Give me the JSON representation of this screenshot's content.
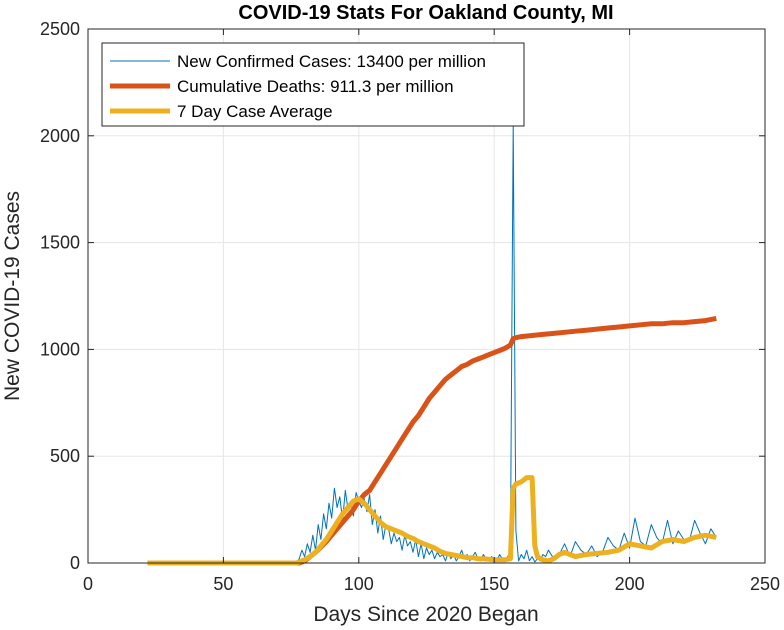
{
  "chart_data": {
    "type": "line",
    "title": "COVID-19 Stats For Oakland County, MI",
    "xlabel": "Days Since 2020 Began",
    "ylabel": "New COVID-19 Cases",
    "xlim": [
      0,
      250
    ],
    "ylim": [
      0,
      2500
    ],
    "xticks": [
      0,
      50,
      100,
      150,
      200,
      250
    ],
    "yticks": [
      0,
      500,
      1000,
      1500,
      2000,
      2500
    ],
    "grid": true,
    "legend_position": "top-left",
    "series": [
      {
        "name": "New Confirmed Cases: 13400 per million",
        "color": "#0072BD",
        "style": "thin",
        "x": [
          22,
          30,
          40,
          50,
          60,
          70,
          77,
          78,
          79,
          80,
          81,
          82,
          83,
          84,
          85,
          86,
          87,
          88,
          89,
          90,
          91,
          92,
          93,
          94,
          95,
          96,
          97,
          98,
          99,
          100,
          101,
          102,
          103,
          104,
          105,
          106,
          107,
          108,
          109,
          110,
          111,
          112,
          113,
          114,
          115,
          116,
          117,
          118,
          119,
          120,
          121,
          122,
          123,
          124,
          125,
          126,
          127,
          128,
          129,
          130,
          131,
          132,
          133,
          134,
          135,
          136,
          137,
          138,
          139,
          140,
          141,
          142,
          143,
          144,
          145,
          146,
          147,
          148,
          149,
          150,
          151,
          152,
          153,
          154,
          155,
          156,
          157,
          158,
          159,
          160,
          161,
          162,
          163,
          164,
          165,
          166,
          167,
          168,
          169,
          170,
          172,
          174,
          176,
          178,
          180,
          182,
          184,
          186,
          188,
          190,
          192,
          194,
          196,
          198,
          200,
          202,
          204,
          206,
          208,
          210,
          212,
          214,
          216,
          218,
          220,
          222,
          224,
          226,
          228,
          230,
          232
        ],
        "y": [
          0,
          0,
          0,
          0,
          0,
          0,
          0,
          20,
          60,
          30,
          90,
          50,
          130,
          60,
          180,
          110,
          230,
          160,
          280,
          210,
          350,
          260,
          310,
          200,
          340,
          250,
          290,
          220,
          330,
          290,
          260,
          300,
          240,
          320,
          180,
          250,
          140,
          220,
          110,
          180,
          160,
          90,
          140,
          100,
          120,
          60,
          130,
          80,
          100,
          50,
          110,
          30,
          90,
          20,
          70,
          40,
          60,
          20,
          50,
          30,
          40,
          10,
          50,
          20,
          40,
          10,
          30,
          60,
          20,
          40,
          10,
          30,
          50,
          20,
          10,
          40,
          20,
          10,
          30,
          20,
          10,
          40,
          20,
          10,
          30,
          50,
          2050,
          150,
          10,
          40,
          20,
          60,
          10,
          30,
          5,
          20,
          10,
          40,
          30,
          60,
          20,
          40,
          90,
          30,
          100,
          60,
          40,
          80,
          30,
          50,
          120,
          80,
          60,
          140,
          70,
          210,
          100,
          80,
          180,
          120,
          90,
          200,
          90,
          150,
          110,
          100,
          200,
          140,
          90,
          160,
          120
        ]
      },
      {
        "name": "Cumulative Deaths: 911.3 per million",
        "color": "#D95319",
        "style": "thick",
        "x": [
          22,
          50,
          78,
          80,
          82,
          84,
          86,
          88,
          90,
          92,
          94,
          96,
          98,
          100,
          102,
          104,
          106,
          108,
          110,
          112,
          114,
          116,
          118,
          120,
          122,
          124,
          126,
          128,
          130,
          132,
          134,
          136,
          138,
          140,
          142,
          144,
          146,
          148,
          150,
          152,
          154,
          156,
          157,
          158,
          160,
          164,
          168,
          172,
          176,
          180,
          184,
          188,
          192,
          196,
          200,
          204,
          208,
          212,
          216,
          220,
          224,
          228,
          232
        ],
        "y": [
          0,
          0,
          0,
          10,
          30,
          50,
          75,
          100,
          130,
          160,
          190,
          220,
          250,
          290,
          320,
          340,
          380,
          420,
          460,
          500,
          540,
          580,
          620,
          660,
          690,
          730,
          770,
          800,
          830,
          860,
          880,
          900,
          920,
          930,
          945,
          955,
          965,
          975,
          985,
          995,
          1005,
          1020,
          1050,
          1055,
          1060,
          1065,
          1070,
          1075,
          1080,
          1085,
          1090,
          1095,
          1100,
          1105,
          1110,
          1115,
          1120,
          1120,
          1125,
          1125,
          1130,
          1135,
          1145
        ]
      },
      {
        "name": "7 Day Case Average",
        "color": "#EDB120",
        "style": "thick",
        "x": [
          22,
          50,
          77,
          80,
          82,
          84,
          86,
          88,
          90,
          92,
          94,
          96,
          98,
          100,
          102,
          104,
          106,
          108,
          110,
          112,
          114,
          116,
          118,
          120,
          122,
          124,
          126,
          128,
          130,
          132,
          134,
          136,
          138,
          140,
          142,
          144,
          146,
          148,
          150,
          152,
          154,
          156,
          157,
          158,
          160,
          162,
          164,
          165,
          166,
          168,
          170,
          172,
          174,
          176,
          178,
          180,
          184,
          188,
          192,
          196,
          200,
          204,
          208,
          212,
          216,
          220,
          224,
          228,
          232
        ],
        "y": [
          0,
          0,
          0,
          15,
          30,
          50,
          80,
          110,
          150,
          190,
          230,
          260,
          290,
          300,
          280,
          250,
          220,
          190,
          170,
          160,
          150,
          140,
          125,
          115,
          100,
          90,
          80,
          70,
          55,
          45,
          40,
          35,
          30,
          25,
          25,
          20,
          20,
          18,
          15,
          15,
          15,
          20,
          350,
          370,
          380,
          400,
          400,
          80,
          30,
          15,
          10,
          20,
          40,
          50,
          40,
          30,
          40,
          45,
          50,
          60,
          90,
          80,
          70,
          100,
          110,
          100,
          120,
          130,
          120
        ]
      }
    ]
  }
}
